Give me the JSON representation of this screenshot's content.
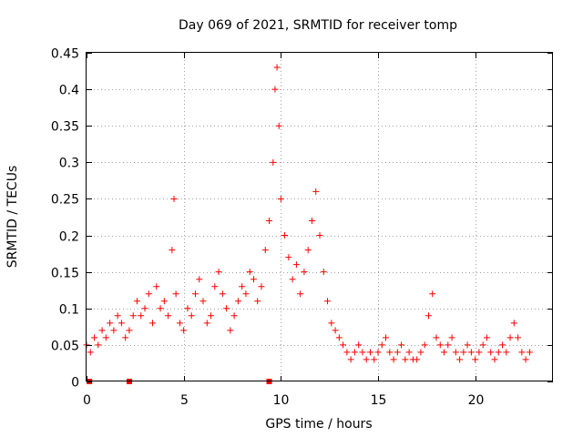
{
  "chart_data": {
    "type": "scatter",
    "title": "Day 069 of 2021, SRMTID for receiver tomp",
    "xlabel": "GPS time / hours",
    "ylabel": "SRMTID / TECUs",
    "xlim": [
      0,
      24
    ],
    "ylim": [
      0,
      0.45
    ],
    "xticks": [
      "0",
      "5",
      "10",
      "15",
      "20"
    ],
    "yticks": [
      "0",
      "0.05",
      "0.1",
      "0.15",
      "0.2",
      "0.25",
      "0.3",
      "0.35",
      "0.4",
      "0.45"
    ],
    "grid": true,
    "marker": "plus",
    "color": "#ff0000",
    "series": [
      {
        "name": "SRMTID",
        "x": [
          0.0,
          0.2,
          0.4,
          0.6,
          0.8,
          1.0,
          1.2,
          1.4,
          1.6,
          1.8,
          2.0,
          2.2,
          2.4,
          2.6,
          2.8,
          3.0,
          3.2,
          3.4,
          3.6,
          3.8,
          4.0,
          4.2,
          4.4,
          4.5,
          4.6,
          4.8,
          5.0,
          5.2,
          5.4,
          5.6,
          5.8,
          6.0,
          6.2,
          6.4,
          6.6,
          6.8,
          7.0,
          7.2,
          7.4,
          7.6,
          7.8,
          8.0,
          8.2,
          8.4,
          8.6,
          8.8,
          9.0,
          9.2,
          9.4,
          9.6,
          9.7,
          9.8,
          9.9,
          10.0,
          10.2,
          10.4,
          10.6,
          10.8,
          11.0,
          11.2,
          11.4,
          11.6,
          11.8,
          12.0,
          12.2,
          12.4,
          12.6,
          12.8,
          13.0,
          13.2,
          13.4,
          13.6,
          13.8,
          14.0,
          14.2,
          14.4,
          14.6,
          14.8,
          15.0,
          15.2,
          15.4,
          15.6,
          15.8,
          16.0,
          16.2,
          16.4,
          16.6,
          16.8,
          17.0,
          17.2,
          17.4,
          17.6,
          17.8,
          18.0,
          18.2,
          18.4,
          18.6,
          18.8,
          19.0,
          19.2,
          19.4,
          19.6,
          19.8,
          20.0,
          20.2,
          20.4,
          20.6,
          20.8,
          21.0,
          21.2,
          21.4,
          21.6,
          21.8,
          22.0,
          22.2,
          22.4,
          22.6,
          22.8
        ],
        "y": [
          0.05,
          0.04,
          0.06,
          0.05,
          0.07,
          0.06,
          0.08,
          0.07,
          0.09,
          0.08,
          0.06,
          0.07,
          0.09,
          0.11,
          0.09,
          0.1,
          0.12,
          0.08,
          0.13,
          0.1,
          0.11,
          0.09,
          0.18,
          0.25,
          0.12,
          0.08,
          0.07,
          0.1,
          0.09,
          0.12,
          0.14,
          0.11,
          0.08,
          0.09,
          0.13,
          0.15,
          0.12,
          0.1,
          0.07,
          0.09,
          0.11,
          0.13,
          0.12,
          0.15,
          0.14,
          0.11,
          0.13,
          0.18,
          0.22,
          0.3,
          0.4,
          0.43,
          0.35,
          0.25,
          0.2,
          0.17,
          0.14,
          0.16,
          0.12,
          0.15,
          0.18,
          0.22,
          0.26,
          0.2,
          0.15,
          0.11,
          0.08,
          0.07,
          0.06,
          0.05,
          0.04,
          0.03,
          0.04,
          0.05,
          0.04,
          0.03,
          0.04,
          0.03,
          0.04,
          0.05,
          0.06,
          0.04,
          0.03,
          0.04,
          0.05,
          0.03,
          0.04,
          0.03,
          0.03,
          0.04,
          0.05,
          0.09,
          0.12,
          0.06,
          0.05,
          0.04,
          0.05,
          0.06,
          0.04,
          0.03,
          0.04,
          0.05,
          0.04,
          0.03,
          0.04,
          0.05,
          0.06,
          0.04,
          0.03,
          0.04,
          0.05,
          0.04,
          0.06,
          0.08,
          0.06,
          0.04,
          0.03,
          0.04
        ]
      }
    ],
    "gap_markers_x": [
      0.15,
      2.2,
      9.4
    ]
  }
}
